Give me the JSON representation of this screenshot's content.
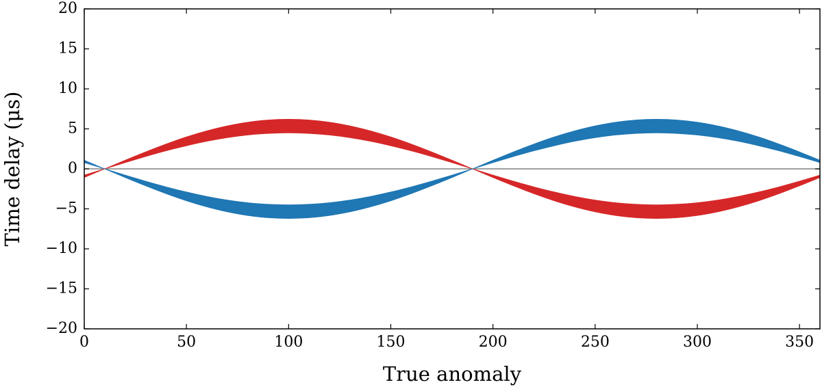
{
  "chart_data": {
    "type": "band",
    "xlabel": "True anomaly",
    "ylabel": "Time delay (μs)",
    "x": [
      0,
      10,
      20,
      30,
      40,
      50,
      60,
      70,
      80,
      90,
      100,
      110,
      120,
      130,
      140,
      150,
      160,
      170,
      180,
      190,
      200,
      210,
      220,
      230,
      240,
      250,
      260,
      270,
      280,
      290,
      300,
      310,
      320,
      330,
      340,
      350,
      360
    ],
    "series": [
      {
        "color": "#d62728",
        "y1": [
          -1.08,
          0,
          1.08,
          2.12,
          3.1,
          3.99,
          4.75,
          5.37,
          5.83,
          6.11,
          6.2,
          6.11,
          5.83,
          5.37,
          4.75,
          3.99,
          3.1,
          2.12,
          1.08,
          0,
          -1.08,
          -2.12,
          -3.1,
          -3.99,
          -4.75,
          -5.37,
          -5.83,
          -6.11,
          -6.2,
          -6.11,
          -5.83,
          -5.37,
          -4.75,
          -3.99,
          -3.1,
          -2.12,
          -1.08
        ],
        "y2": [
          -0.78,
          0,
          0.78,
          1.54,
          2.25,
          2.89,
          3.45,
          3.9,
          4.23,
          4.43,
          4.5,
          4.43,
          4.23,
          3.9,
          3.45,
          2.89,
          2.25,
          1.54,
          0.78,
          0,
          -0.78,
          -1.54,
          -2.25,
          -2.89,
          -3.45,
          -3.9,
          -4.23,
          -4.43,
          -4.5,
          -4.43,
          -4.23,
          -3.9,
          -3.45,
          -2.89,
          -2.25,
          -1.54,
          -0.78
        ]
      },
      {
        "color": "#1f77b4",
        "y1": [
          1.08,
          0,
          -1.08,
          -2.12,
          -3.1,
          -3.99,
          -4.75,
          -5.37,
          -5.83,
          -6.11,
          -6.2,
          -6.11,
          -5.83,
          -5.37,
          -4.75,
          -3.99,
          -3.1,
          -2.12,
          -1.08,
          0,
          1.08,
          2.12,
          3.1,
          3.99,
          4.75,
          5.37,
          5.83,
          6.11,
          6.2,
          6.11,
          5.83,
          5.37,
          4.75,
          3.99,
          3.1,
          2.12,
          1.08
        ],
        "y2": [
          0.78,
          0,
          -0.78,
          -1.54,
          -2.25,
          -2.89,
          -3.45,
          -3.9,
          -4.23,
          -4.43,
          -4.5,
          -4.43,
          -4.23,
          -3.9,
          -3.45,
          -2.89,
          -2.25,
          -1.54,
          -0.78,
          0,
          0.78,
          1.54,
          2.25,
          2.89,
          3.45,
          3.9,
          4.23,
          4.43,
          4.5,
          4.43,
          4.23,
          3.9,
          3.45,
          2.89,
          2.25,
          1.54,
          0.78
        ]
      }
    ],
    "hlines": [
      0
    ],
    "xlim": [
      0,
      360
    ],
    "xticks": [
      0,
      50,
      100,
      150,
      200,
      250,
      300,
      350
    ],
    "ylim": [
      -20,
      20
    ],
    "yticks": [
      {
        "value": -20,
        "label": "−20"
      },
      {
        "value": -15,
        "label": "−15"
      },
      {
        "value": -10,
        "label": "−10"
      },
      {
        "value": -5,
        "label": "−5"
      },
      0,
      5,
      10,
      15,
      20
    ],
    "grid": false
  }
}
